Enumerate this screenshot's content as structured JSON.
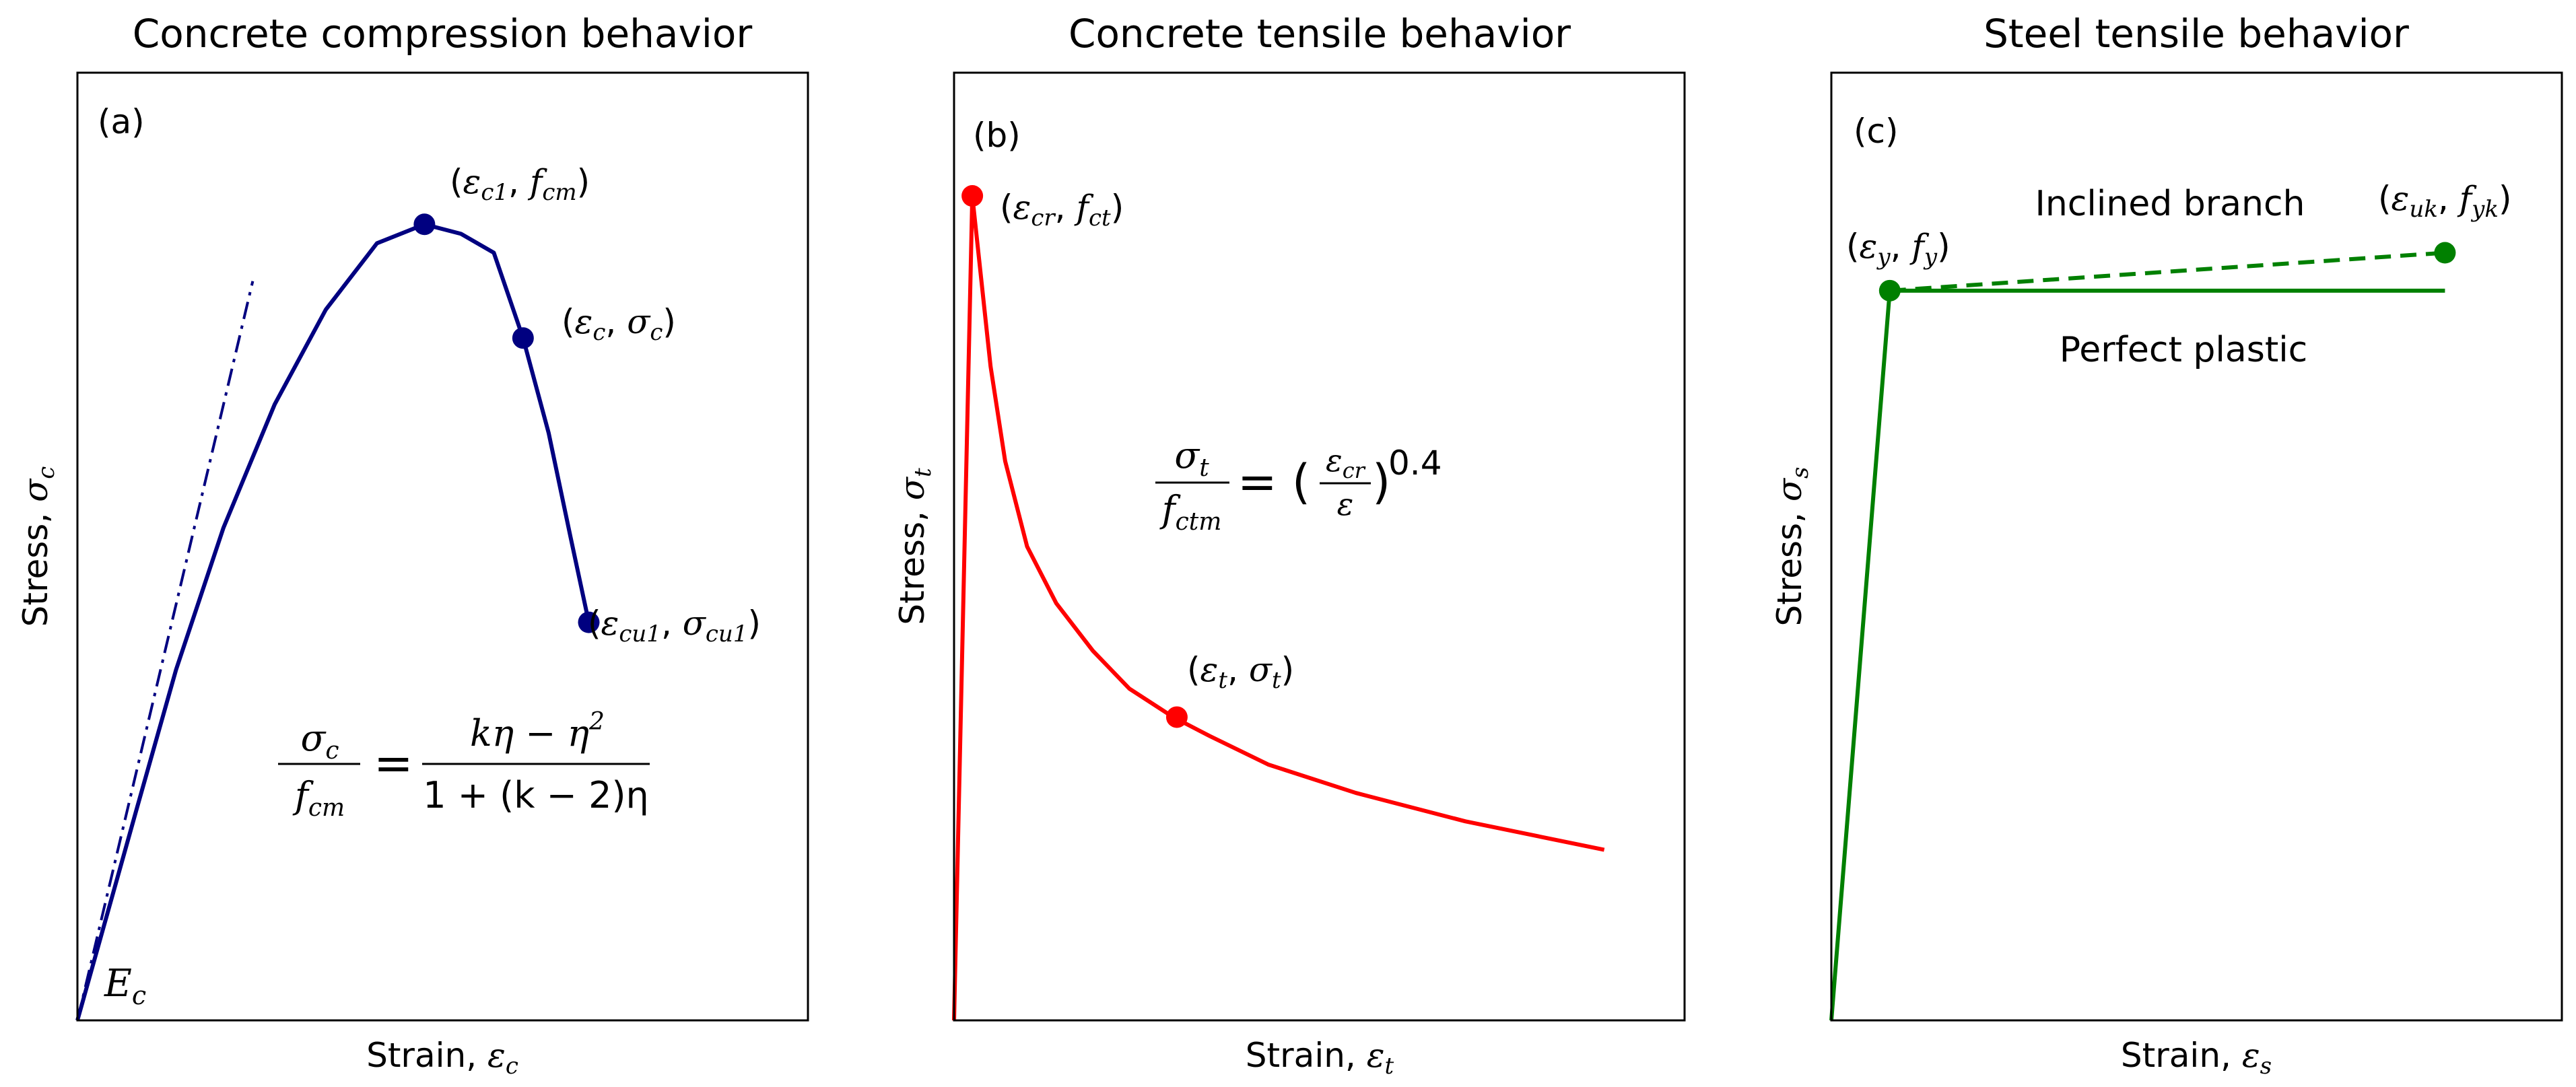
{
  "colors": {
    "a": "#000080",
    "b": "#ff0000",
    "c": "#008000",
    "frame": "#000000",
    "background": "#ffffff"
  },
  "chart_data": [
    {
      "type": "line",
      "title": "Concrete compression behavior",
      "panel_label": "(a)",
      "xlabel": "Strain, εc",
      "ylabel": "Stress, σc",
      "xlim": [
        0,
        1
      ],
      "ylim": [
        0,
        1
      ],
      "grid": false,
      "series": [
        {
          "style": "solid",
          "x": [
            0,
            0.08,
            0.135,
            0.2,
            0.27,
            0.34,
            0.41,
            0.475,
            0.525,
            0.57,
            0.61,
            0.645,
            0.675,
            0.7
          ],
          "y": [
            0,
            0.22,
            0.37,
            0.52,
            0.65,
            0.75,
            0.82,
            0.84,
            0.83,
            0.81,
            0.72,
            0.62,
            0.51,
            0.42
          ]
        },
        {
          "style": "dashdot",
          "x": [
            0,
            0.24
          ],
          "y": [
            0,
            0.78
          ]
        }
      ],
      "points": [
        {
          "x": 0.475,
          "y": 0.84,
          "label": "(εc1, fcm)"
        },
        {
          "x": 0.61,
          "y": 0.72,
          "label": "(εc, σc)"
        },
        {
          "x": 0.7,
          "y": 0.42,
          "label": "(εcu1, σcu1)"
        }
      ],
      "annotations": {
        "modulus": "E",
        "modulus_sub": "c",
        "equation": {
          "lhs_num": "σ",
          "lhs_num_sub": "c",
          "lhs_den": "f",
          "lhs_den_sub": "cm",
          "equals": "=",
          "rhs_num": "kη − η",
          "rhs_num_sup": "2",
          "rhs_den": "1 + (k − 2)η"
        }
      }
    },
    {
      "type": "line",
      "title": "Concrete tensile behavior",
      "panel_label": "(b)",
      "xlabel": "Strain, εt",
      "ylabel": "Stress, σt",
      "xlim": [
        0,
        1
      ],
      "ylim": [
        0,
        1
      ],
      "grid": false,
      "series": [
        {
          "style": "solid",
          "x": [
            0,
            0.025,
            0.05,
            0.07,
            0.1,
            0.14,
            0.19,
            0.24,
            0.3,
            0.35,
            0.43,
            0.55,
            0.7,
            0.89
          ],
          "y": [
            0,
            0.87,
            0.69,
            0.59,
            0.5,
            0.44,
            0.39,
            0.35,
            0.32,
            0.3,
            0.27,
            0.24,
            0.21,
            0.18
          ]
        }
      ],
      "points": [
        {
          "x": 0.025,
          "y": 0.87,
          "label": "(εcr, fct)"
        },
        {
          "x": 0.305,
          "y": 0.32,
          "label": "(εt, σt)"
        }
      ],
      "annotations": {
        "equation": {
          "lhs_num": "σ",
          "lhs_num_sub": "t",
          "lhs_den": "f",
          "lhs_den_sub": "ctm",
          "equals": "= (",
          "rhs_num": "ε",
          "rhs_num_sub": "cr",
          "rhs_den": "ε",
          "close": ")",
          "power": "0.4"
        }
      }
    },
    {
      "type": "line",
      "title": "Steel tensile behavior",
      "panel_label": "(c)",
      "xlabel": "Strain, εs",
      "ylabel": "Stress, σs",
      "xlim": [
        0,
        1
      ],
      "ylim": [
        0,
        1
      ],
      "grid": false,
      "series": [
        {
          "name": "Perfect plastic",
          "style": "solid",
          "x": [
            0,
            0.08,
            0.84
          ],
          "y": [
            0,
            0.77,
            0.77
          ]
        },
        {
          "name": "Inclined branch",
          "style": "dashed",
          "x": [
            0.08,
            0.84
          ],
          "y": [
            0.77,
            0.81
          ]
        }
      ],
      "points": [
        {
          "x": 0.08,
          "y": 0.77,
          "label": "(εy, fy)"
        },
        {
          "x": 0.84,
          "y": 0.81,
          "label": "(εuk, fyk)"
        }
      ]
    }
  ]
}
